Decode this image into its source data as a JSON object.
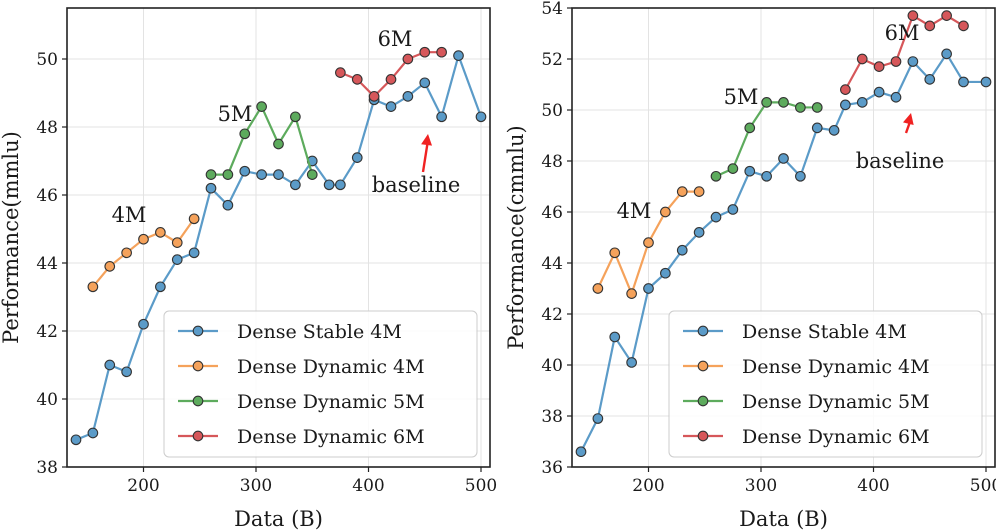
{
  "colors": {
    "dense_stable_4m": "#5b9bc8",
    "dense_dynamic_4m": "#f5a25b",
    "dense_dynamic_5m": "#5dab5d",
    "dense_dynamic_6m": "#d6575a",
    "arrow": "#f02222"
  },
  "chart_data": [
    {
      "type": "line",
      "xlabel": "Data (B)",
      "ylabel": "Performance(mmlu)",
      "xlim": [
        132,
        508
      ],
      "ylim": [
        38,
        51.5
      ],
      "xticks": [
        200,
        300,
        400,
        500
      ],
      "yticks": [
        38,
        40,
        42,
        44,
        46,
        48,
        50
      ],
      "grid": true,
      "legend_position": "bottom-right",
      "annotations": [
        "4M",
        "5M",
        "6M",
        "baseline"
      ],
      "series": [
        {
          "name": "Dense Stable 4M",
          "x": [
            140,
            155,
            170,
            185,
            200,
            215,
            230,
            245,
            260,
            275,
            290,
            305,
            320,
            335,
            350,
            365,
            375,
            390,
            405,
            420,
            435,
            450,
            465,
            480,
            500
          ],
          "y": [
            38.8,
            39.0,
            41.0,
            40.8,
            42.2,
            43.3,
            44.1,
            44.3,
            46.2,
            45.7,
            46.7,
            46.6,
            46.6,
            46.3,
            47.0,
            46.3,
            46.3,
            47.1,
            48.8,
            48.6,
            48.9,
            49.3,
            48.3,
            50.1,
            48.3
          ]
        },
        {
          "name": "Dense Dynamic 4M",
          "x": [
            155,
            170,
            185,
            200,
            215,
            230,
            245
          ],
          "y": [
            43.3,
            43.9,
            44.3,
            44.7,
            44.9,
            44.6,
            45.3
          ]
        },
        {
          "name": "Dense Dynamic 5M",
          "x": [
            260,
            275,
            290,
            305,
            320,
            335,
            350
          ],
          "y": [
            46.6,
            46.6,
            47.8,
            48.6,
            47.5,
            48.3,
            46.6
          ]
        },
        {
          "name": "Dense Dynamic 6M",
          "x": [
            375,
            390,
            405,
            420,
            435,
            450,
            465
          ],
          "y": [
            49.6,
            49.4,
            48.9,
            49.4,
            50.0,
            50.2,
            50.2
          ]
        }
      ]
    },
    {
      "type": "line",
      "xlabel": "Data (B)",
      "ylabel": "Performance(cmmlu)",
      "xlim": [
        132,
        508
      ],
      "ylim": [
        36,
        54
      ],
      "xticks": [
        200,
        300,
        400,
        500
      ],
      "yticks": [
        36,
        38,
        40,
        42,
        44,
        46,
        48,
        50,
        52,
        54
      ],
      "grid": true,
      "legend_position": "bottom-right",
      "annotations": [
        "4M",
        "5M",
        "6M",
        "baseline"
      ],
      "series": [
        {
          "name": "Dense Stable 4M",
          "x": [
            140,
            155,
            170,
            185,
            200,
            215,
            230,
            245,
            260,
            275,
            290,
            305,
            320,
            335,
            350,
            365,
            375,
            390,
            405,
            420,
            435,
            450,
            465,
            480,
            500
          ],
          "y": [
            36.6,
            37.9,
            41.1,
            40.1,
            43.0,
            43.6,
            44.5,
            45.2,
            45.8,
            46.1,
            47.6,
            47.4,
            48.1,
            47.4,
            49.3,
            49.2,
            50.2,
            50.3,
            50.7,
            50.5,
            51.9,
            51.2,
            52.2,
            51.1,
            51.1
          ]
        },
        {
          "name": "Dense Dynamic 4M",
          "x": [
            155,
            170,
            185,
            200,
            215,
            230,
            245
          ],
          "y": [
            43.0,
            44.4,
            42.8,
            44.8,
            46.0,
            46.8,
            46.8
          ]
        },
        {
          "name": "Dense Dynamic 5M",
          "x": [
            260,
            275,
            290,
            305,
            320,
            335,
            350
          ],
          "y": [
            47.4,
            47.7,
            49.3,
            50.3,
            50.3,
            50.1,
            50.1
          ]
        },
        {
          "name": "Dense Dynamic 6M",
          "x": [
            375,
            390,
            405,
            420,
            435,
            450,
            465,
            480
          ],
          "y": [
            50.8,
            52.0,
            51.7,
            51.9,
            53.7,
            53.3,
            53.7,
            53.3
          ]
        }
      ]
    }
  ]
}
